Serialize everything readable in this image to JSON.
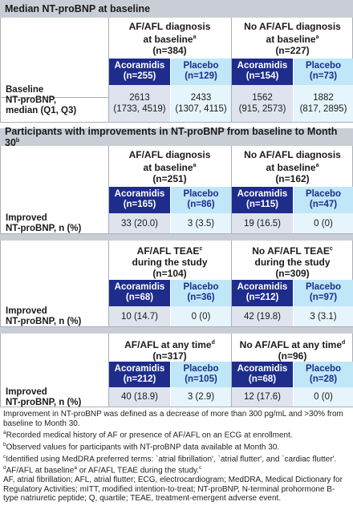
{
  "section1": {
    "title": "Median NT-proBNP at baseline",
    "groups": [
      {
        "title_l1": "AF/AFL diagnosis",
        "title_l2": "at baseline",
        "sup": "a",
        "n": "(n=384)",
        "acor": "Acoramidis",
        "acor_n": "(n=255)",
        "plac": "Placebo",
        "plac_n": "(n=129)"
      },
      {
        "title_l1": "No AF/AFL diagnosis",
        "title_l2": "at baseline",
        "sup": "a",
        "n": "(n=227)",
        "acor": "Acoramidis",
        "acor_n": "(n=154)",
        "plac": "Placebo",
        "plac_n": "(n=73)"
      }
    ],
    "row_label": [
      "Baseline",
      "NT-proBNP,",
      "median (Q1, Q3)"
    ],
    "values": [
      {
        "v": "2613",
        "r": "(1733, 4519)"
      },
      {
        "v": "2433",
        "r": "(1307, 4115)"
      },
      {
        "v": "1562",
        "r": "(915, 2573)"
      },
      {
        "v": "1882",
        "r": "(817, 2895)"
      }
    ]
  },
  "section2": {
    "title": "Participants with improvements in NT-proBNP from baseline to Month 30",
    "title_sup": "b",
    "blocks": [
      {
        "groups": [
          {
            "title_l1": "AF/AFL diagnosis",
            "title_l2": "at baseline",
            "sup": "a",
            "n": "(n=251)",
            "acor": "Acoramidis",
            "acor_n": "(n=165)",
            "plac": "Placebo",
            "plac_n": "(n=86)"
          },
          {
            "title_l1": "No AF/AFL diagnosis",
            "title_l2": "at baseline",
            "sup": "a",
            "n": "(n=162)",
            "acor": "Acoramidis",
            "acor_n": "(n=115)",
            "plac": "Placebo",
            "plac_n": "(n=47)"
          }
        ],
        "row_label": [
          "Improved",
          "NT-proBNP, n (%)"
        ],
        "values": [
          "33 (20.0)",
          "3 (3.5)",
          "19 (16.5)",
          "0 (0)"
        ]
      },
      {
        "groups": [
          {
            "title_l1": "AF/AFL TEAE",
            "sup1": "c",
            "title_l2": "during the study",
            "n": "(n=104)",
            "acor": "Acoramidis",
            "acor_n": "(n=68)",
            "plac": "Placebo",
            "plac_n": "(n=36)"
          },
          {
            "title_l1": "No AF/AFL TEAE",
            "sup1": "c",
            "title_l2": "during the study",
            "n": "(n=309)",
            "acor": "Acoramidis",
            "acor_n": "(n=212)",
            "plac": "Placebo",
            "plac_n": "(n=97)"
          }
        ],
        "row_label": [
          "Improved",
          "NT-proBNP, n (%)"
        ],
        "values": [
          "10 (14.7)",
          "0 (0)",
          "42 (19.8)",
          "3 (3.1)"
        ]
      },
      {
        "groups": [
          {
            "title_l1": "AF/AFL at any time",
            "sup1": "d",
            "n": "(n=317)",
            "acor": "Acoramidis",
            "acor_n": "(n=212)",
            "plac": "Placebo",
            "plac_n": "(n=105)"
          },
          {
            "title_l1": "No AF/AFL at any time",
            "sup1": "d",
            "n": "(n=96)",
            "acor": "Acoramidis",
            "acor_n": "(n=68)",
            "plac": "Placebo",
            "plac_n": "(n=28)"
          }
        ],
        "row_label": [
          "Improved",
          "NT-proBNP, n (%)"
        ],
        "values": [
          "40 (18.9)",
          "3 (2.9)",
          "12 (17.6)",
          "0 (0)"
        ]
      }
    ]
  },
  "footnotes": {
    "improvement_def": "Improvement in NT-proBNP was defined as a decrease of more than 300 pg/mL and >30% from baseline to Month 30.",
    "a": "Recorded medical history of AF or presence of AF/AFL on an ECG at enrollment.",
    "b": "Observed values for participants with NT-proBNP data available at Month 30.",
    "c": "Identified using MedDRA preferred terms: `atrial fibrillation', `atrial flutter', and `cardiac flutter'.",
    "d_part1": "AF/AFL at baseline",
    "d_part2": " or AF/AFL TEAE during the study.",
    "abbrev": "AF, atrial fibrillation; AFL, atrial flutter; ECG, electrocardiogram; MedDRA, Medical Dictionary for Regulatory Activities; mITT, modified intention-to-treat; NT-proBNP, N-terminal prohormone B-type natriuretic peptide; Q, quartile; TEAE, treatment-emergent adverse event."
  }
}
